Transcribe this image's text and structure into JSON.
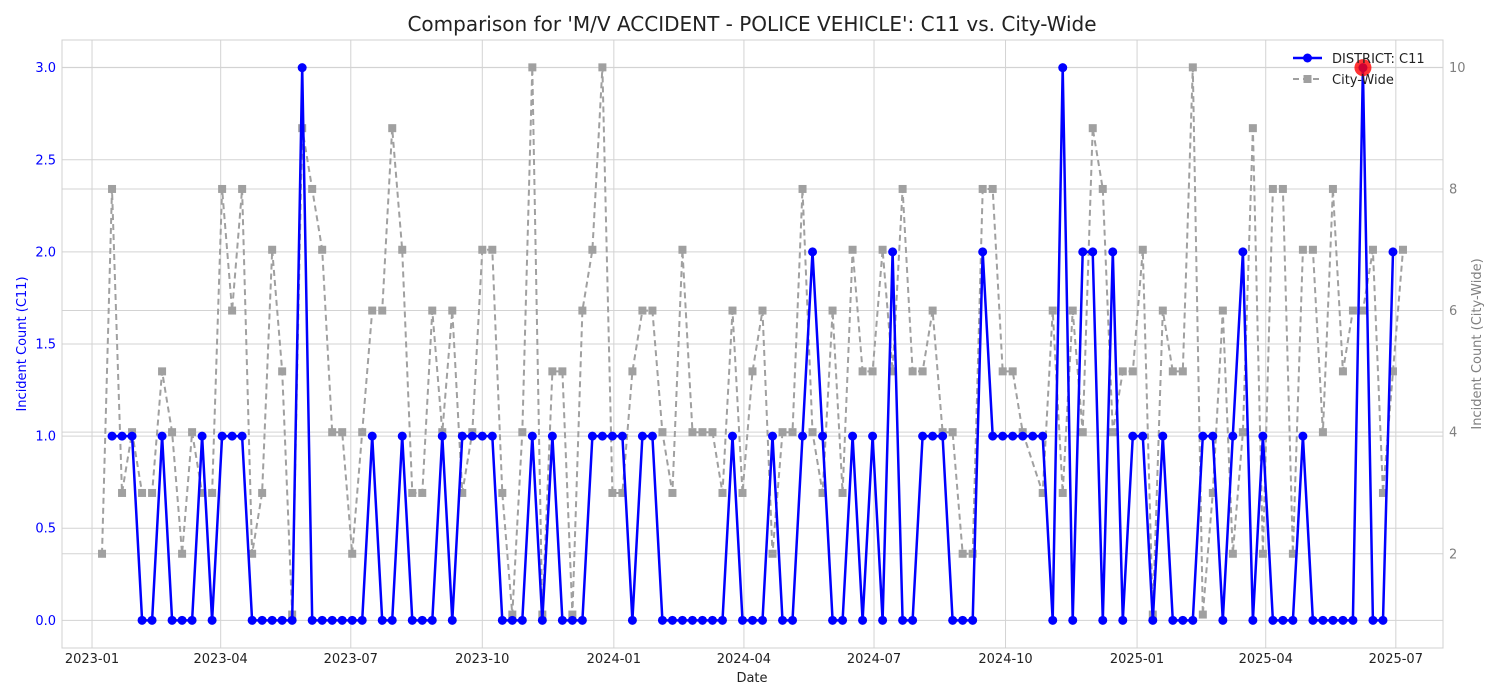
{
  "chart_data": {
    "type": "line",
    "title": "Comparison for 'M/V ACCIDENT - POLICE VEHICLE': C11 vs. City-Wide",
    "xlabel": "Date",
    "ylabel_left": "Incident Count (C11)",
    "ylabel_right": "Incident Count (City-Wide)",
    "xlim": [
      "2022-12-11",
      "2025-08-03"
    ],
    "ylim_left": [
      -0.15,
      3.15
    ],
    "ylim_right": [
      0.45,
      10.45
    ],
    "x_ticks": [
      {
        "date": "2023-01-01",
        "label": "2023-01"
      },
      {
        "date": "2023-04-01",
        "label": "2023-04"
      },
      {
        "date": "2023-07-01",
        "label": "2023-07"
      },
      {
        "date": "2023-10-01",
        "label": "2023-10"
      },
      {
        "date": "2024-01-01",
        "label": "2024-01"
      },
      {
        "date": "2024-04-01",
        "label": "2024-04"
      },
      {
        "date": "2024-07-01",
        "label": "2024-07"
      },
      {
        "date": "2024-10-01",
        "label": "2024-10"
      },
      {
        "date": "2025-01-01",
        "label": "2025-01"
      },
      {
        "date": "2025-04-01",
        "label": "2025-04"
      },
      {
        "date": "2025-07-01",
        "label": "2025-07"
      }
    ],
    "y_ticks_left": [
      "0.0",
      "0.5",
      "1.0",
      "1.5",
      "2.0",
      "2.5",
      "3.0"
    ],
    "y_ticks_right": [
      "2",
      "4",
      "6",
      "8",
      "10"
    ],
    "grid": true,
    "legend_position": "top-right",
    "series": [
      {
        "name": "DISTRICT: C11",
        "axis": "left",
        "color": "#0000ff",
        "style": "solid",
        "marker": "circle",
        "points": [
          [
            "2023-01-15",
            1
          ],
          [
            "2023-01-22",
            1
          ],
          [
            "2023-01-29",
            1
          ],
          [
            "2023-02-05",
            0
          ],
          [
            "2023-02-12",
            0
          ],
          [
            "2023-02-19",
            1
          ],
          [
            "2023-02-26",
            0
          ],
          [
            "2023-03-05",
            0
          ],
          [
            "2023-03-12",
            0
          ],
          [
            "2023-03-19",
            1
          ],
          [
            "2023-03-26",
            0
          ],
          [
            "2023-04-02",
            1
          ],
          [
            "2023-04-09",
            1
          ],
          [
            "2023-04-16",
            1
          ],
          [
            "2023-04-23",
            0
          ],
          [
            "2023-04-30",
            0
          ],
          [
            "2023-05-07",
            0
          ],
          [
            "2023-05-14",
            0
          ],
          [
            "2023-05-21",
            0
          ],
          [
            "2023-05-28",
            3
          ],
          [
            "2023-06-04",
            0
          ],
          [
            "2023-06-11",
            0
          ],
          [
            "2023-06-18",
            0
          ],
          [
            "2023-06-25",
            0
          ],
          [
            "2023-07-02",
            0
          ],
          [
            "2023-07-09",
            0
          ],
          [
            "2023-07-16",
            1
          ],
          [
            "2023-07-23",
            0
          ],
          [
            "2023-07-30",
            0
          ],
          [
            "2023-08-06",
            1
          ],
          [
            "2023-08-13",
            0
          ],
          [
            "2023-08-20",
            0
          ],
          [
            "2023-08-27",
            0
          ],
          [
            "2023-09-03",
            1
          ],
          [
            "2023-09-10",
            0
          ],
          [
            "2023-09-17",
            1
          ],
          [
            "2023-09-24",
            1
          ],
          [
            "2023-10-01",
            1
          ],
          [
            "2023-10-08",
            1
          ],
          [
            "2023-10-15",
            0
          ],
          [
            "2023-10-22",
            0
          ],
          [
            "2023-10-29",
            0
          ],
          [
            "2023-11-05",
            1
          ],
          [
            "2023-11-12",
            0
          ],
          [
            "2023-11-19",
            1
          ],
          [
            "2023-11-26",
            0
          ],
          [
            "2023-12-03",
            0
          ],
          [
            "2023-12-10",
            0
          ],
          [
            "2023-12-17",
            1
          ],
          [
            "2023-12-24",
            1
          ],
          [
            "2023-12-31",
            1
          ],
          [
            "2024-01-07",
            1
          ],
          [
            "2024-01-14",
            0
          ],
          [
            "2024-01-21",
            1
          ],
          [
            "2024-01-28",
            1
          ],
          [
            "2024-02-04",
            0
          ],
          [
            "2024-02-11",
            0
          ],
          [
            "2024-02-18",
            0
          ],
          [
            "2024-02-25",
            0
          ],
          [
            "2024-03-03",
            0
          ],
          [
            "2024-03-10",
            0
          ],
          [
            "2024-03-17",
            0
          ],
          [
            "2024-03-24",
            1
          ],
          [
            "2024-03-31",
            0
          ],
          [
            "2024-04-07",
            0
          ],
          [
            "2024-04-14",
            0
          ],
          [
            "2024-04-21",
            1
          ],
          [
            "2024-04-28",
            0
          ],
          [
            "2024-05-05",
            0
          ],
          [
            "2024-05-12",
            1
          ],
          [
            "2024-05-19",
            2
          ],
          [
            "2024-05-26",
            1
          ],
          [
            "2024-06-02",
            0
          ],
          [
            "2024-06-09",
            0
          ],
          [
            "2024-06-16",
            1
          ],
          [
            "2024-06-23",
            0
          ],
          [
            "2024-06-30",
            1
          ],
          [
            "2024-07-07",
            0
          ],
          [
            "2024-07-14",
            2
          ],
          [
            "2024-07-21",
            0
          ],
          [
            "2024-07-28",
            0
          ],
          [
            "2024-08-04",
            1
          ],
          [
            "2024-08-11",
            1
          ],
          [
            "2024-08-18",
            1
          ],
          [
            "2024-08-25",
            0
          ],
          [
            "2024-09-01",
            0
          ],
          [
            "2024-09-08",
            0
          ],
          [
            "2024-09-15",
            2
          ],
          [
            "2024-09-22",
            1
          ],
          [
            "2024-09-29",
            1
          ],
          [
            "2024-10-06",
            1
          ],
          [
            "2024-10-13",
            1
          ],
          [
            "2024-10-20",
            1
          ],
          [
            "2024-10-27",
            1
          ],
          [
            "2024-11-03",
            0
          ],
          [
            "2024-11-10",
            3
          ],
          [
            "2024-11-17",
            0
          ],
          [
            "2024-11-24",
            2
          ],
          [
            "2024-12-01",
            2
          ],
          [
            "2024-12-08",
            0
          ],
          [
            "2024-12-15",
            2
          ],
          [
            "2024-12-22",
            0
          ],
          [
            "2024-12-29",
            1
          ],
          [
            "2025-01-05",
            1
          ],
          [
            "2025-01-12",
            0
          ],
          [
            "2025-01-19",
            1
          ],
          [
            "2025-01-26",
            0
          ],
          [
            "2025-02-02",
            0
          ],
          [
            "2025-02-09",
            0
          ],
          [
            "2025-02-16",
            1
          ],
          [
            "2025-02-23",
            1
          ],
          [
            "2025-03-02",
            0
          ],
          [
            "2025-03-09",
            1
          ],
          [
            "2025-03-16",
            2
          ],
          [
            "2025-03-23",
            0
          ],
          [
            "2025-03-30",
            1
          ],
          [
            "2025-04-06",
            0
          ],
          [
            "2025-04-13",
            0
          ],
          [
            "2025-04-20",
            0
          ],
          [
            "2025-04-27",
            1
          ],
          [
            "2025-05-04",
            0
          ],
          [
            "2025-05-11",
            0
          ],
          [
            "2025-05-18",
            0
          ],
          [
            "2025-05-25",
            0
          ],
          [
            "2025-06-01",
            0
          ],
          [
            "2025-06-08",
            3
          ],
          [
            "2025-06-15",
            0
          ],
          [
            "2025-06-22",
            0
          ],
          [
            "2025-06-29",
            2
          ]
        ]
      },
      {
        "name": "City-Wide",
        "axis": "right",
        "color": "#a0a0a0",
        "style": "dashed",
        "marker": "square",
        "points": [
          [
            "2023-01-08",
            2
          ],
          [
            "2023-01-15",
            8
          ],
          [
            "2023-01-22",
            3
          ],
          [
            "2023-01-29",
            4
          ],
          [
            "2023-02-05",
            3
          ],
          [
            "2023-02-12",
            3
          ],
          [
            "2023-02-19",
            5
          ],
          [
            "2023-02-26",
            4
          ],
          [
            "2023-03-05",
            2
          ],
          [
            "2023-03-12",
            4
          ],
          [
            "2023-03-19",
            3
          ],
          [
            "2023-03-26",
            3
          ],
          [
            "2023-04-02",
            8
          ],
          [
            "2023-04-09",
            6
          ],
          [
            "2023-04-16",
            8
          ],
          [
            "2023-04-23",
            2
          ],
          [
            "2023-04-30",
            3
          ],
          [
            "2023-05-07",
            7
          ],
          [
            "2023-05-14",
            5
          ],
          [
            "2023-05-21",
            1
          ],
          [
            "2023-05-28",
            9
          ],
          [
            "2023-06-04",
            8
          ],
          [
            "2023-06-11",
            7
          ],
          [
            "2023-06-18",
            4
          ],
          [
            "2023-06-25",
            4
          ],
          [
            "2023-07-02",
            2
          ],
          [
            "2023-07-09",
            4
          ],
          [
            "2023-07-16",
            6
          ],
          [
            "2023-07-23",
            6
          ],
          [
            "2023-07-30",
            9
          ],
          [
            "2023-08-06",
            7
          ],
          [
            "2023-08-13",
            3
          ],
          [
            "2023-08-20",
            3
          ],
          [
            "2023-08-27",
            6
          ],
          [
            "2023-09-03",
            4
          ],
          [
            "2023-09-10",
            6
          ],
          [
            "2023-09-17",
            3
          ],
          [
            "2023-09-24",
            4
          ],
          [
            "2023-10-01",
            7
          ],
          [
            "2023-10-08",
            7
          ],
          [
            "2023-10-15",
            3
          ],
          [
            "2023-10-22",
            1
          ],
          [
            "2023-10-29",
            4
          ],
          [
            "2023-11-05",
            10
          ],
          [
            "2023-11-12",
            1
          ],
          [
            "2023-11-19",
            5
          ],
          [
            "2023-11-26",
            5
          ],
          [
            "2023-12-03",
            1
          ],
          [
            "2023-12-10",
            6
          ],
          [
            "2023-12-17",
            7
          ],
          [
            "2023-12-24",
            10
          ],
          [
            "2023-12-31",
            3
          ],
          [
            "2024-01-07",
            3
          ],
          [
            "2024-01-14",
            5
          ],
          [
            "2024-01-21",
            6
          ],
          [
            "2024-01-28",
            6
          ],
          [
            "2024-02-04",
            4
          ],
          [
            "2024-02-11",
            3
          ],
          [
            "2024-02-18",
            7
          ],
          [
            "2024-02-25",
            4
          ],
          [
            "2024-03-03",
            4
          ],
          [
            "2024-03-10",
            4
          ],
          [
            "2024-03-17",
            3
          ],
          [
            "2024-03-24",
            6
          ],
          [
            "2024-03-31",
            3
          ],
          [
            "2024-04-07",
            5
          ],
          [
            "2024-04-14",
            6
          ],
          [
            "2024-04-21",
            2
          ],
          [
            "2024-04-28",
            4
          ],
          [
            "2024-05-05",
            4
          ],
          [
            "2024-05-12",
            8
          ],
          [
            "2024-05-19",
            4
          ],
          [
            "2024-05-26",
            3
          ],
          [
            "2024-06-02",
            6
          ],
          [
            "2024-06-09",
            3
          ],
          [
            "2024-06-16",
            7
          ],
          [
            "2024-06-23",
            5
          ],
          [
            "2024-06-30",
            5
          ],
          [
            "2024-07-07",
            7
          ],
          [
            "2024-07-14",
            5
          ],
          [
            "2024-07-21",
            8
          ],
          [
            "2024-07-28",
            5
          ],
          [
            "2024-08-04",
            5
          ],
          [
            "2024-08-11",
            6
          ],
          [
            "2024-08-18",
            4
          ],
          [
            "2024-08-25",
            4
          ],
          [
            "2024-09-01",
            2
          ],
          [
            "2024-09-08",
            2
          ],
          [
            "2024-09-15",
            8
          ],
          [
            "2024-09-22",
            8
          ],
          [
            "2024-09-29",
            5
          ],
          [
            "2024-10-06",
            5
          ],
          [
            "2024-10-13",
            4
          ],
          [
            "2024-10-27",
            3
          ],
          [
            "2024-11-03",
            6
          ],
          [
            "2024-11-10",
            3
          ],
          [
            "2024-11-17",
            6
          ],
          [
            "2024-11-24",
            4
          ],
          [
            "2024-12-01",
            9
          ],
          [
            "2024-12-08",
            8
          ],
          [
            "2024-12-15",
            4
          ],
          [
            "2024-12-22",
            5
          ],
          [
            "2024-12-29",
            5
          ],
          [
            "2025-01-05",
            7
          ],
          [
            "2025-01-12",
            1
          ],
          [
            "2025-01-19",
            6
          ],
          [
            "2025-01-26",
            5
          ],
          [
            "2025-02-02",
            5
          ],
          [
            "2025-02-09",
            10
          ],
          [
            "2025-02-16",
            1
          ],
          [
            "2025-02-23",
            3
          ],
          [
            "2025-03-02",
            6
          ],
          [
            "2025-03-09",
            2
          ],
          [
            "2025-03-16",
            4
          ],
          [
            "2025-03-23",
            9
          ],
          [
            "2025-03-30",
            2
          ],
          [
            "2025-04-06",
            8
          ],
          [
            "2025-04-13",
            8
          ],
          [
            "2025-04-20",
            2
          ],
          [
            "2025-04-27",
            7
          ],
          [
            "2025-05-04",
            7
          ],
          [
            "2025-05-11",
            4
          ],
          [
            "2025-05-18",
            8
          ],
          [
            "2025-05-25",
            5
          ],
          [
            "2025-06-01",
            6
          ],
          [
            "2025-06-08",
            6
          ],
          [
            "2025-06-15",
            7
          ],
          [
            "2025-06-22",
            3
          ],
          [
            "2025-06-29",
            5
          ],
          [
            "2025-07-06",
            7
          ]
        ]
      }
    ],
    "highlight": {
      "date": "2025-06-08",
      "value": 3,
      "axis": "left",
      "color": "#ff0000"
    }
  }
}
